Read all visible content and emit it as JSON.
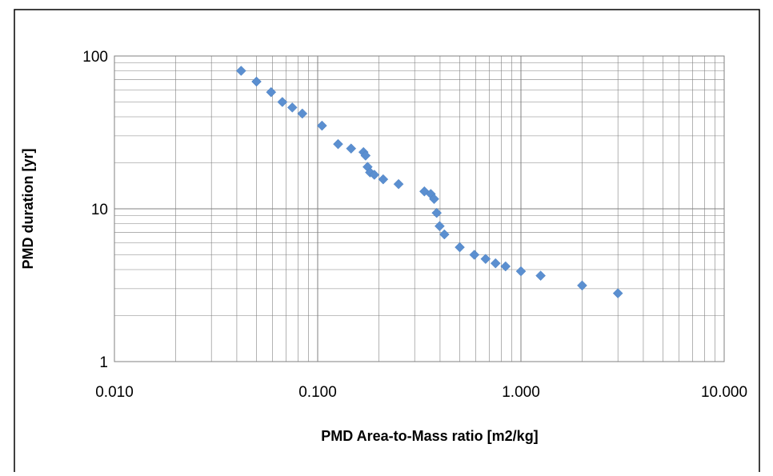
{
  "chart_data": {
    "type": "scatter",
    "title": "",
    "xlabel": "PMD Area-to-Mass ratio [m2/kg]",
    "ylabel": "PMD duration [yr]",
    "x_scale": "log",
    "y_scale": "log",
    "xlim": [
      0.01,
      10
    ],
    "ylim": [
      1,
      100
    ],
    "x_ticks": [
      0.01,
      0.1,
      1,
      10
    ],
    "x_tick_labels": [
      "0.010",
      "0.100",
      "1.000",
      "10.000"
    ],
    "y_ticks": [
      1,
      10,
      100
    ],
    "y_tick_labels": [
      "1",
      "10",
      "100"
    ],
    "grid": true,
    "legend": "none",
    "marker": "diamond",
    "colors": {
      "marker": "#5b8fd0",
      "grid": "#808080",
      "frame": "#000000"
    },
    "series": [
      {
        "points": [
          [
            0.042,
            80
          ],
          [
            0.05,
            68
          ],
          [
            0.059,
            58
          ],
          [
            0.067,
            50
          ],
          [
            0.075,
            46
          ],
          [
            0.084,
            42
          ],
          [
            0.105,
            35
          ],
          [
            0.126,
            26.5
          ],
          [
            0.146,
            24.8
          ],
          [
            0.168,
            23.5
          ],
          [
            0.172,
            22.3
          ],
          [
            0.176,
            18.8
          ],
          [
            0.181,
            17.3
          ],
          [
            0.19,
            16.7
          ],
          [
            0.21,
            15.6
          ],
          [
            0.25,
            14.5
          ],
          [
            0.335,
            13
          ],
          [
            0.36,
            12.5
          ],
          [
            0.374,
            11.6
          ],
          [
            0.385,
            9.4
          ],
          [
            0.398,
            7.7
          ],
          [
            0.42,
            6.8
          ],
          [
            0.5,
            5.6
          ],
          [
            0.59,
            5
          ],
          [
            0.67,
            4.7
          ],
          [
            0.75,
            4.4
          ],
          [
            0.84,
            4.2
          ],
          [
            1.0,
            3.9
          ],
          [
            1.25,
            3.65
          ],
          [
            2.0,
            3.15
          ],
          [
            3.0,
            2.8
          ]
        ]
      }
    ]
  }
}
